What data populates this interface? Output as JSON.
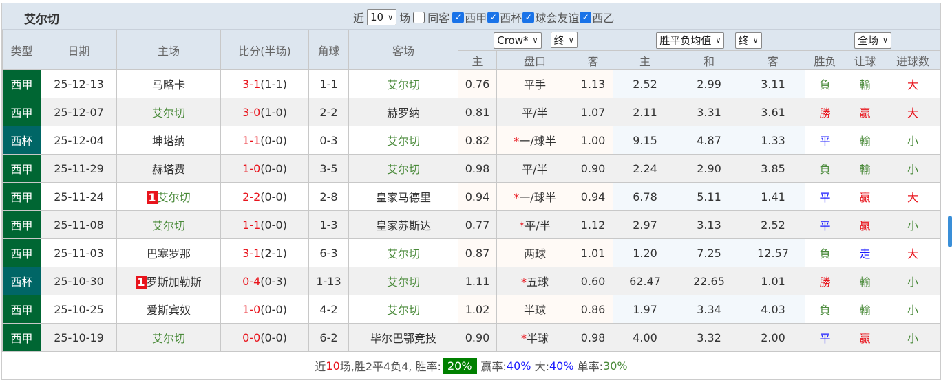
{
  "title": "艾尔切",
  "filters": {
    "near_label": "近",
    "count": "10",
    "games_label": "场",
    "same_label": "同客",
    "same_checked": false,
    "leagues": [
      {
        "label": "西甲",
        "checked": true
      },
      {
        "label": "西杯",
        "checked": true
      },
      {
        "label": "球会友谊",
        "checked": true
      },
      {
        "label": "西乙",
        "checked": true
      }
    ]
  },
  "headers": {
    "type": "类型",
    "date": "日期",
    "home": "主场",
    "score": "比分(半场)",
    "corner": "角球",
    "away": "客场",
    "company": "Crow*",
    "odds_time": "终",
    "avg": "胜平负均值",
    "avg_time": "终",
    "period": "全场",
    "ah_home": "主",
    "ah_line": "盘口",
    "ah_away": "客",
    "eu_home": "主",
    "eu_draw": "和",
    "eu_away": "客",
    "wl": "胜负",
    "hcp": "让球",
    "ou": "进球数"
  },
  "rows": [
    {
      "type": "西甲",
      "cup": false,
      "date": "25-12-13",
      "badge_home": "",
      "home": "马略卡",
      "home_is_team": false,
      "ft": "3-1",
      "ht": "(1-1)",
      "corner": "1-1",
      "badge_away": "",
      "away": "艾尔切",
      "away_is_team": true,
      "ah_h": "0.76",
      "star": "",
      "line": "平手",
      "ah_a": "1.13",
      "eu_h": "2.52",
      "eu_d": "2.99",
      "eu_a": "3.11",
      "wl": "負",
      "hcp": "輸",
      "ou": "大"
    },
    {
      "type": "西甲",
      "cup": false,
      "date": "25-12-07",
      "badge_home": "",
      "home": "艾尔切",
      "home_is_team": true,
      "ft": "3-0",
      "ht": "(1-0)",
      "corner": "2-2",
      "badge_away": "",
      "away": "赫罗纳",
      "away_is_team": false,
      "ah_h": "0.81",
      "star": "",
      "line": "平/半",
      "ah_a": "1.07",
      "eu_h": "2.11",
      "eu_d": "3.31",
      "eu_a": "3.61",
      "wl": "勝",
      "hcp": "贏",
      "ou": "大"
    },
    {
      "type": "西杯",
      "cup": true,
      "date": "25-12-04",
      "badge_home": "",
      "home": "坤塔纳",
      "home_is_team": false,
      "ft": "1-1",
      "ht": "(0-0)",
      "corner": "0-3",
      "badge_away": "",
      "away": "艾尔切",
      "away_is_team": true,
      "ah_h": "0.82",
      "star": "*",
      "line": "一/球半",
      "ah_a": "1.00",
      "eu_h": "9.15",
      "eu_d": "4.87",
      "eu_a": "1.33",
      "wl": "平",
      "hcp": "輸",
      "ou": "小"
    },
    {
      "type": "西甲",
      "cup": false,
      "date": "25-11-29",
      "badge_home": "",
      "home": "赫塔费",
      "home_is_team": false,
      "ft": "1-0",
      "ht": "(0-0)",
      "corner": "3-5",
      "badge_away": "",
      "away": "艾尔切",
      "away_is_team": true,
      "ah_h": "0.98",
      "star": "",
      "line": "平/半",
      "ah_a": "0.90",
      "eu_h": "2.24",
      "eu_d": "2.90",
      "eu_a": "3.85",
      "wl": "負",
      "hcp": "輸",
      "ou": "小"
    },
    {
      "type": "西甲",
      "cup": false,
      "date": "25-11-24",
      "badge_home": "1",
      "home": "艾尔切",
      "home_is_team": true,
      "ft": "2-2",
      "ht": "(0-0)",
      "corner": "2-8",
      "badge_away": "",
      "away": "皇家马德里",
      "away_is_team": false,
      "ah_h": "0.94",
      "star": "*",
      "line": "一/球半",
      "ah_a": "0.94",
      "eu_h": "6.78",
      "eu_d": "5.11",
      "eu_a": "1.41",
      "wl": "平",
      "hcp": "贏",
      "ou": "大"
    },
    {
      "type": "西甲",
      "cup": false,
      "date": "25-11-08",
      "badge_home": "",
      "home": "艾尔切",
      "home_is_team": true,
      "ft": "1-1",
      "ht": "(0-0)",
      "corner": "1-3",
      "badge_away": "",
      "away": "皇家苏斯达",
      "away_is_team": false,
      "ah_h": "0.77",
      "star": "*",
      "line": "平/半",
      "ah_a": "1.12",
      "eu_h": "2.97",
      "eu_d": "3.13",
      "eu_a": "2.52",
      "wl": "平",
      "hcp": "贏",
      "ou": "小"
    },
    {
      "type": "西甲",
      "cup": false,
      "date": "25-11-03",
      "badge_home": "",
      "home": "巴塞罗那",
      "home_is_team": false,
      "ft": "3-1",
      "ht": "(2-1)",
      "corner": "6-3",
      "badge_away": "",
      "away": "艾尔切",
      "away_is_team": true,
      "ah_h": "0.87",
      "star": "",
      "line": "两球",
      "ah_a": "1.01",
      "eu_h": "1.20",
      "eu_d": "7.25",
      "eu_a": "12.57",
      "wl": "負",
      "hcp": "走",
      "ou": "大"
    },
    {
      "type": "西杯",
      "cup": true,
      "date": "25-10-30",
      "badge_home": "1",
      "home": "罗斯加勒斯",
      "home_is_team": false,
      "ft": "0-4",
      "ht": "(0-3)",
      "corner": "1-13",
      "badge_away": "",
      "away": "艾尔切",
      "away_is_team": true,
      "ah_h": "1.11",
      "star": "*",
      "line": "五球",
      "ah_a": "0.60",
      "eu_h": "62.47",
      "eu_d": "22.65",
      "eu_a": "1.01",
      "wl": "勝",
      "hcp": "輸",
      "ou": "小"
    },
    {
      "type": "西甲",
      "cup": false,
      "date": "25-10-25",
      "badge_home": "",
      "home": "爱斯宾奴",
      "home_is_team": false,
      "ft": "1-0",
      "ht": "(0-0)",
      "corner": "4-2",
      "badge_away": "",
      "away": "艾尔切",
      "away_is_team": true,
      "ah_h": "1.02",
      "star": "",
      "line": "半球",
      "ah_a": "0.86",
      "eu_h": "1.97",
      "eu_d": "3.34",
      "eu_a": "4.03",
      "wl": "負",
      "hcp": "輸",
      "ou": "小"
    },
    {
      "type": "西甲",
      "cup": false,
      "date": "25-10-19",
      "badge_home": "",
      "home": "艾尔切",
      "home_is_team": true,
      "ft": "0-0",
      "ht": "(0-0)",
      "corner": "6-2",
      "badge_away": "",
      "away": "毕尔巴鄂竞技",
      "away_is_team": false,
      "ah_h": "0.90",
      "star": "*",
      "line": "半球",
      "ah_a": "0.98",
      "eu_h": "4.00",
      "eu_d": "3.32",
      "eu_a": "2.00",
      "wl": "平",
      "hcp": "贏",
      "ou": "小"
    }
  ],
  "summary": {
    "p1": "近",
    "n": "10",
    "p2": "场,胜2平4负4, 胜率:",
    "win_rate": "20%",
    "p3": "赢率:",
    "ah_rate": "40%",
    "p4": "大:",
    "over_rate": "40%",
    "p5": "单率:",
    "odd_rate": "30%"
  },
  "colors": {
    "league": "#006633",
    "cup": "#006666",
    "team": "#4a8a3a",
    "red": "#e8141c",
    "blue": "#1a1aff"
  }
}
